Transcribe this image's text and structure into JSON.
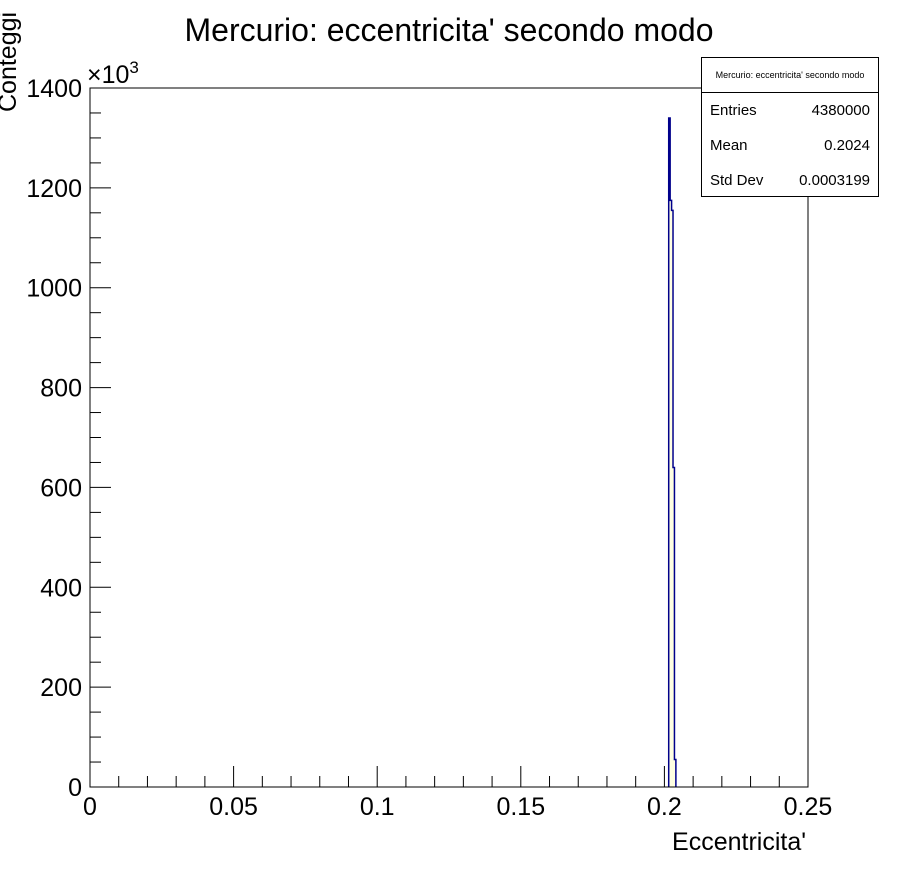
{
  "chart_data": {
    "type": "histogram",
    "title": "Mercurio: eccentricita' secondo modo",
    "xlabel": "Eccentricita'",
    "ylabel": "Conteggi",
    "y_multiplier": "×10",
    "y_multiplier_exp": "3",
    "xlim": [
      0,
      0.25
    ],
    "ylim": [
      0,
      1400
    ],
    "x_ticks": [
      0,
      0.05,
      0.1,
      0.15,
      0.2,
      0.25
    ],
    "x_tick_labels": [
      "0",
      "0.05",
      "0.1",
      "0.15",
      "0.2",
      "0.25"
    ],
    "y_ticks": [
      0,
      200,
      400,
      600,
      800,
      1000,
      1200,
      1400
    ],
    "y_tick_labels": [
      "0",
      "200",
      "400",
      "600",
      "800",
      "1000",
      "1200",
      "1400"
    ],
    "bins": [
      {
        "x0": 0.2015,
        "x1": 0.202,
        "y": 1340
      },
      {
        "x0": 0.202,
        "x1": 0.2025,
        "y": 1175
      },
      {
        "x0": 0.2025,
        "x1": 0.203,
        "y": 1155
      },
      {
        "x0": 0.203,
        "x1": 0.2035,
        "y": 640
      },
      {
        "x0": 0.2035,
        "x1": 0.204,
        "y": 55
      }
    ],
    "line_color": "#00008b",
    "fill_color": "#ffffe0",
    "grid": false,
    "stats": {
      "title": "Mercurio: eccentricita' secondo modo",
      "entries_label": "Entries",
      "entries_value": "4380000",
      "mean_label": "Mean",
      "mean_value": "0.2024",
      "stddev_label": "Std Dev",
      "stddev_value": "0.0003199"
    }
  }
}
